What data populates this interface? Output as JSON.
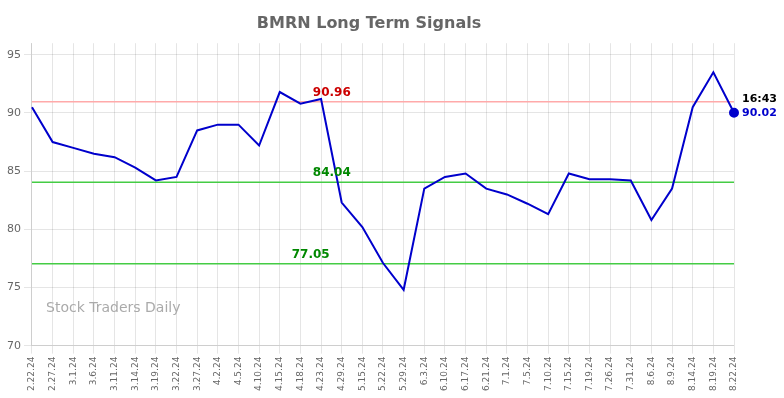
{
  "chart_data": {
    "type": "line",
    "title": "BMRN Long Term Signals",
    "categories": [
      "2.22.24",
      "2.27.24",
      "3.1.24",
      "3.6.24",
      "3.11.24",
      "3.14.24",
      "3.19.24",
      "3.22.24",
      "3.27.24",
      "4.2.24",
      "4.5.24",
      "4.10.24",
      "4.15.24",
      "4.18.24",
      "4.23.24",
      "4.29.24",
      "5.15.24",
      "5.22.24",
      "5.29.24",
      "6.3.24",
      "6.10.24",
      "6.17.24",
      "6.21.24",
      "7.1.24",
      "7.5.24",
      "7.10.24",
      "7.15.24",
      "7.19.24",
      "7.26.24",
      "7.31.24",
      "8.6.24",
      "8.9.24",
      "8.14.24",
      "8.19.24",
      "8.22.24"
    ],
    "values": [
      90.5,
      87.5,
      87.0,
      86.5,
      86.2,
      85.3,
      84.2,
      84.5,
      88.5,
      89.0,
      89.0,
      87.2,
      91.8,
      90.8,
      91.2,
      82.3,
      80.2,
      77.1,
      74.8,
      83.5,
      84.5,
      84.8,
      83.5,
      83.0,
      82.2,
      81.3,
      84.8,
      84.3,
      84.3,
      84.2,
      80.8,
      83.5,
      90.5,
      93.5,
      90.02
    ],
    "color": "#0000cc",
    "ylim": [
      70,
      96
    ],
    "yticks": [
      70,
      75,
      80,
      85,
      90,
      95
    ],
    "grid": true,
    "reference_lines": [
      {
        "value": 90.96,
        "color": "#ffaaaa",
        "label_color": "#cc0000"
      },
      {
        "value": 84.04,
        "color": "#44cc44",
        "label_color": "#008800"
      },
      {
        "value": 77.05,
        "color": "#44cc44",
        "label_color": "#008800"
      }
    ],
    "end_point": {
      "label": "16:43",
      "value": 90.02,
      "color": "#0000cc"
    },
    "watermark": "Stock Traders Daily",
    "watermark_color": "#aaaaaa"
  }
}
